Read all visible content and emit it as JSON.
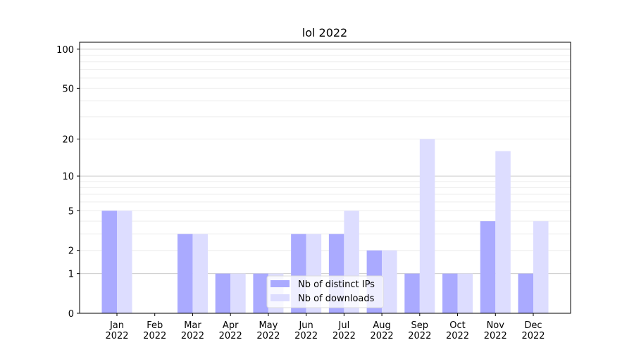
{
  "chart_data": {
    "type": "bar",
    "title": "lol 2022",
    "xlabel": "",
    "ylabel": "",
    "y_scale": "log(1+y)",
    "ylim": [
      0,
      113
    ],
    "yticks": [
      0,
      1,
      2,
      5,
      10,
      20,
      50,
      100
    ],
    "grid": true,
    "legend_placement": "lower-center",
    "categories": [
      "Jan\n2022",
      "Feb\n2022",
      "Mar\n2022",
      "Apr\n2022",
      "May\n2022",
      "Jun\n2022",
      "Jul\n2022",
      "Aug\n2022",
      "Sep\n2022",
      "Oct\n2022",
      "Nov\n2022",
      "Dec\n2022"
    ],
    "series": [
      {
        "name": "Nb of distinct IPs",
        "color": "#aaaaff",
        "values": [
          5,
          0,
          3,
          1,
          1,
          3,
          3,
          2,
          1,
          1,
          4,
          1
        ]
      },
      {
        "name": "Nb of downloads",
        "color": "#ddddff",
        "values": [
          5,
          0,
          3,
          1,
          1,
          3,
          5,
          2,
          20,
          1,
          16,
          4
        ]
      }
    ]
  }
}
